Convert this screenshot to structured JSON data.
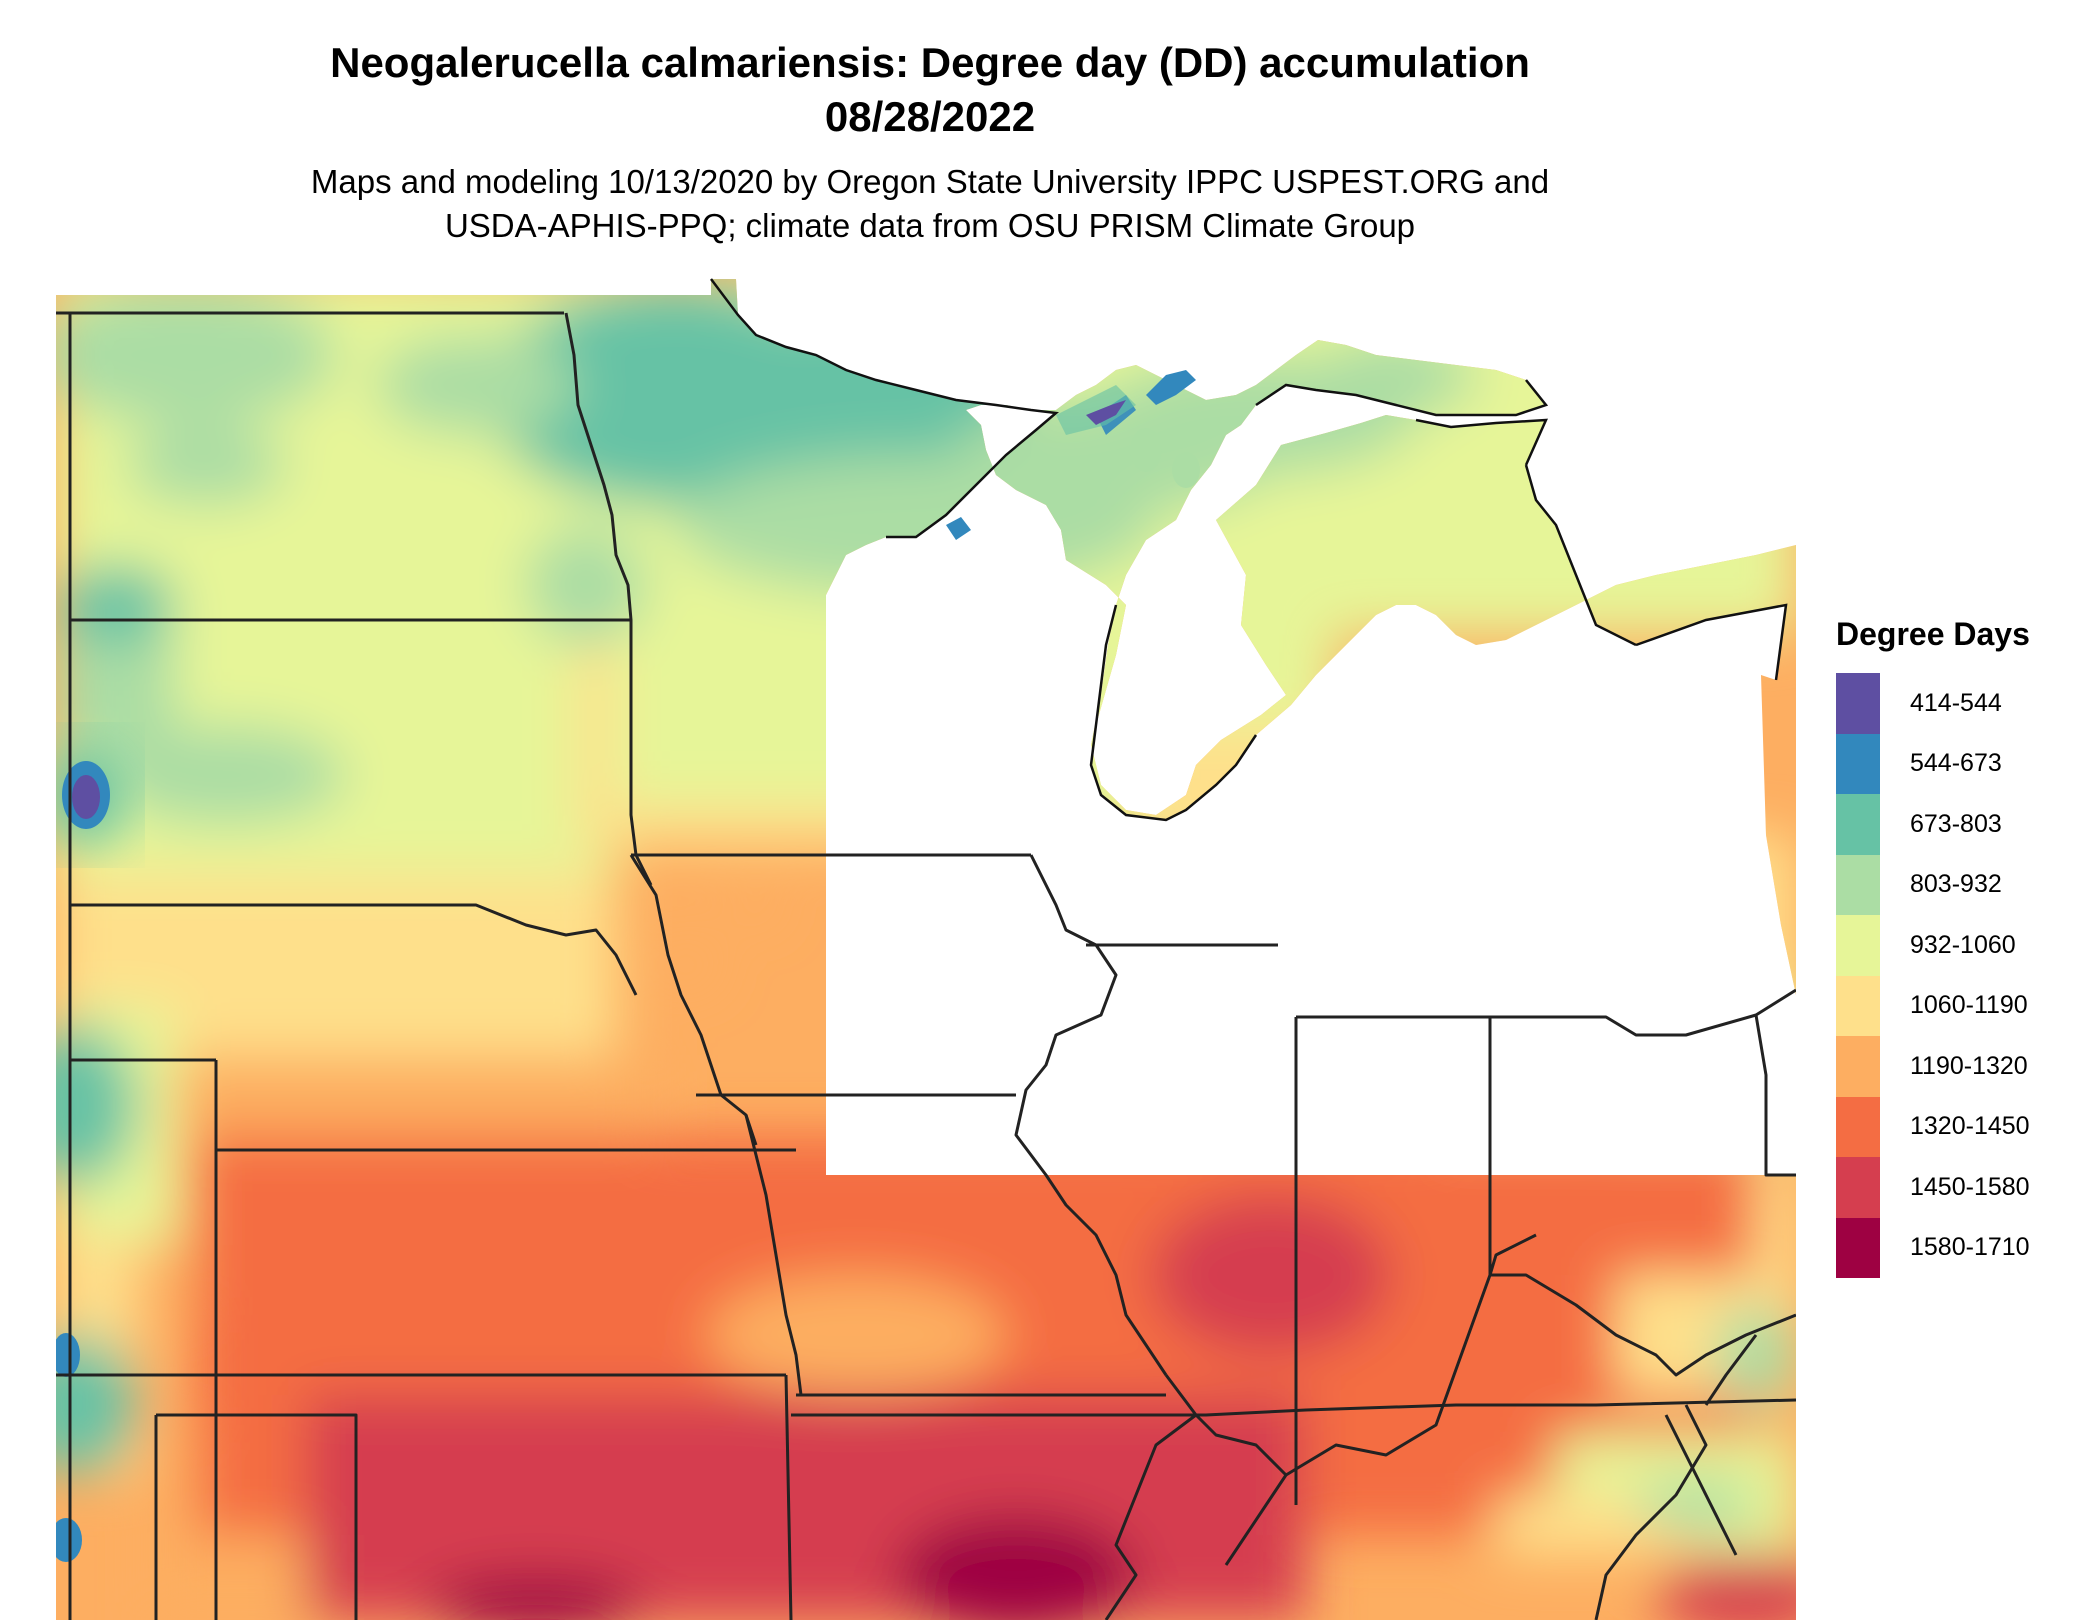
{
  "title_line1": "Neogalerucella calmariensis: Degree day (DD) accumulation",
  "title_line2": "08/28/2022",
  "subtitle_line1": "Maps and modeling 10/13/2020 by Oregon State University IPPC USPEST.ORG and",
  "subtitle_line2": "USDA-APHIS-PPQ; climate data from OSU PRISM Climate Group",
  "legend": {
    "title": "Degree Days",
    "bins": [
      {
        "label": "414-544",
        "color": "#5e4fa2"
      },
      {
        "label": "544-673",
        "color": "#3288bd"
      },
      {
        "label": "673-803",
        "color": "#66c2a5"
      },
      {
        "label": "803-932",
        "color": "#abdda4"
      },
      {
        "label": "932-1060",
        "color": "#e6f598"
      },
      {
        "label": "1060-1190",
        "color": "#fee08b"
      },
      {
        "label": "1190-1320",
        "color": "#fdae61"
      },
      {
        "label": "1320-1450",
        "color": "#f46d43"
      },
      {
        "label": "1450-1580",
        "color": "#d53e4f"
      },
      {
        "label": "1580-1710",
        "color": "#9e0142"
      }
    ]
  }
}
